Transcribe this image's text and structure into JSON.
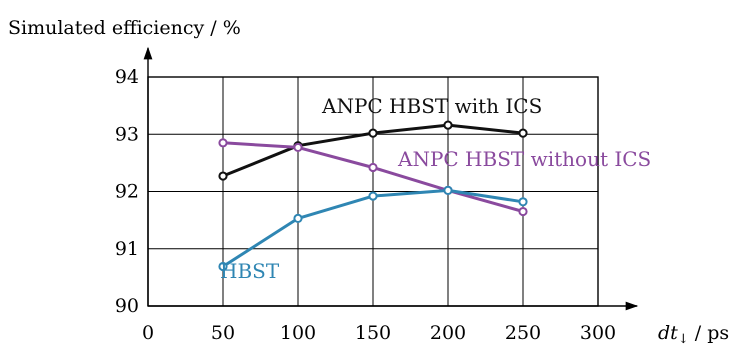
{
  "chart_data": {
    "type": "line",
    "title": "",
    "ylabel": "Simulated efficiency / %",
    "xlabel_main": "dt",
    "xlabel_sub": "↓",
    "xlabel_unit": " / ps",
    "x_ticks": [
      0,
      50,
      100,
      150,
      200,
      250,
      300
    ],
    "y_ticks": [
      90,
      91,
      92,
      93,
      94
    ],
    "xlim": [
      0,
      300
    ],
    "ylim": [
      90,
      94
    ],
    "grid": true,
    "series": [
      {
        "name": "ANPC HBST with ICS",
        "color": "#111111",
        "x": [
          50,
          100,
          150,
          200,
          250
        ],
        "values": [
          92.27,
          92.8,
          93.02,
          93.16,
          93.02
        ]
      },
      {
        "name": "ANPC HBST without ICS",
        "color": "#8a4a9e",
        "x": [
          50,
          100,
          150,
          200,
          250
        ],
        "values": [
          92.85,
          92.77,
          92.42,
          92.02,
          91.65
        ]
      },
      {
        "name": "HBST",
        "color": "#2f86b3",
        "x": [
          50,
          100,
          150,
          200,
          250
        ],
        "values": [
          90.69,
          91.53,
          91.92,
          92.02,
          91.82
        ]
      }
    ]
  }
}
